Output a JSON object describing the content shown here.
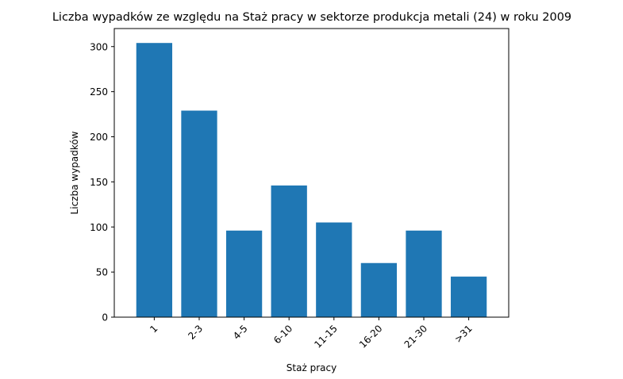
{
  "chart_data": {
    "type": "bar",
    "title": "Liczba wypadków ze względu na Staż pracy w sektorze produkcja metali (24)   w roku 2009",
    "xlabel": "Staż pracy",
    "ylabel": "Liczba wypadków",
    "categories": [
      "1",
      "2-3",
      "4-5",
      "6-10",
      "11-15",
      "16-20",
      "21-30",
      ">31"
    ],
    "values": [
      304,
      229,
      96,
      146,
      105,
      60,
      96,
      45
    ],
    "ylim": [
      0,
      320
    ],
    "yticks": [
      "0",
      "50",
      "100",
      "150",
      "200",
      "250",
      "300"
    ],
    "bar_color": "#1f77b4",
    "grid": false,
    "legend": "none"
  }
}
